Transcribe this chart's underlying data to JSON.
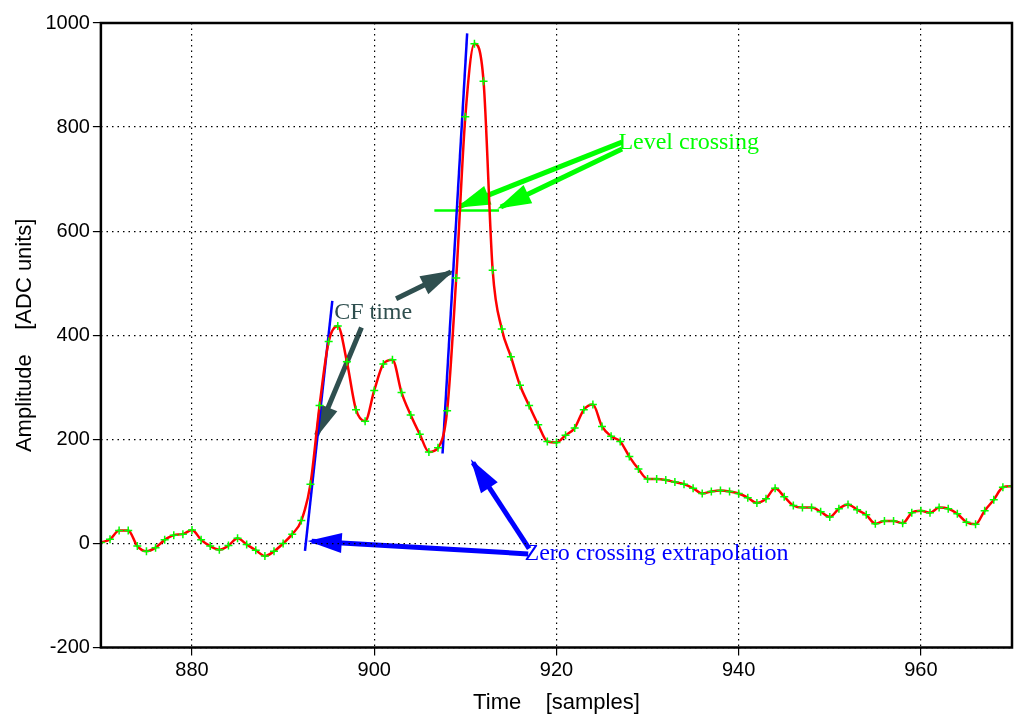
{
  "chart_data": {
    "type": "line",
    "xlabel": "Time    [samples]",
    "ylabel": "Amplitude    [ADC units]",
    "x": [
      870,
      871,
      872,
      873,
      874,
      875,
      876,
      877,
      878,
      879,
      880,
      881,
      882,
      883,
      884,
      885,
      886,
      887,
      888,
      889,
      890,
      891,
      892,
      893,
      894,
      895,
      896,
      897,
      898,
      899,
      900,
      901,
      902,
      903,
      904,
      905,
      906,
      907,
      908,
      909,
      910,
      911,
      912,
      913,
      914,
      915,
      916,
      917,
      918,
      919,
      920,
      921,
      922,
      923,
      924,
      925,
      926,
      927,
      928,
      929,
      930,
      931,
      932,
      933,
      934,
      935,
      936,
      937,
      938,
      939,
      940,
      941,
      942,
      943,
      944,
      945,
      946,
      947,
      948,
      949,
      950,
      951,
      952,
      953,
      954,
      955,
      956,
      957,
      958,
      959,
      960,
      961,
      962,
      963,
      964,
      965,
      966,
      967,
      968,
      969,
      970
    ],
    "series": [
      {
        "color": "#ff0000",
        "marker": "cross",
        "values": [
          2,
          8,
          25,
          25,
          -5,
          -15,
          -8,
          7,
          16,
          18,
          26,
          7,
          -5,
          -12,
          -4,
          10,
          -2,
          -13,
          -24,
          -15,
          0,
          18,
          44,
          114,
          265,
          388,
          418,
          349,
          257,
          235,
          294,
          345,
          353,
          290,
          247,
          210,
          176,
          184,
          255,
          510,
          820,
          960,
          888,
          525,
          412,
          359,
          304,
          265,
          228,
          196,
          194,
          208,
          222,
          257,
          267,
          225,
          206,
          196,
          167,
          143,
          124,
          124,
          122,
          118,
          114,
          106,
          96,
          100,
          102,
          100,
          96,
          88,
          78,
          86,
          106,
          90,
          73,
          69,
          69,
          61,
          51,
          67,
          75,
          65,
          55,
          38,
          43,
          43,
          39,
          59,
          63,
          59,
          69,
          67,
          57,
          41,
          37,
          63,
          84,
          108,
          110
        ]
      },
      {
        "type": "line",
        "color": "#0000ff",
        "marker": "none",
        "x": [
          892.4,
          895.4
        ],
        "values": [
          -14,
          466
        ]
      },
      {
        "type": "line",
        "color": "#0000ff",
        "marker": "none",
        "x": [
          907.5,
          910.2
        ],
        "values": [
          173,
          980
        ]
      },
      {
        "type": "line",
        "color": "#00ff00",
        "marker": "none",
        "x": [
          906.6,
          913.7
        ],
        "values": [
          640,
          640
        ]
      }
    ],
    "xlim": [
      870,
      970
    ],
    "xticks": [
      880,
      900,
      920,
      940,
      960
    ],
    "ylim": [
      -200,
      1000
    ],
    "yticks": [
      -200,
      0,
      200,
      400,
      600,
      800,
      1000
    ],
    "grid": true,
    "legend": false,
    "line_style": "solid",
    "annotations": [
      {
        "text": "CF time",
        "x": 893.5,
        "y": 201
      },
      {
        "text": "Level crossing",
        "x": 909,
        "y": 645
      },
      {
        "text": "Zero crossing extrapolation",
        "x": 892.7,
        "y": 5
      }
    ]
  }
}
